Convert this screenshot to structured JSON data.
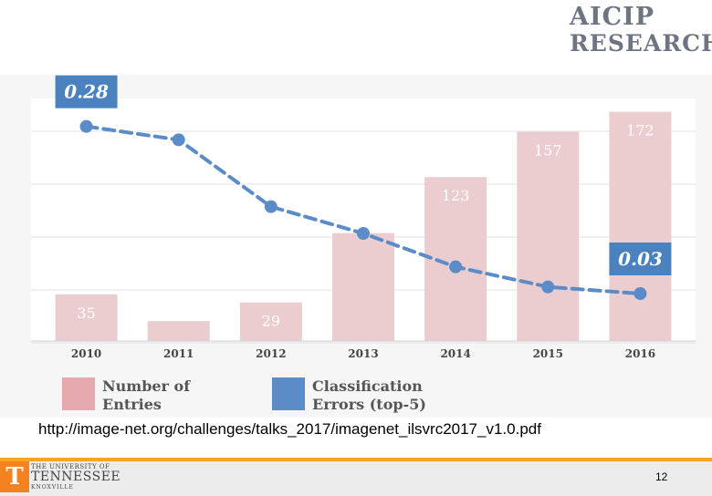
{
  "logo": {
    "line1": "AICIP",
    "line2": "RESEARCH"
  },
  "chart_data": {
    "type": "bar",
    "categories": [
      "2010",
      "2011",
      "2012",
      "2013",
      "2014",
      "2015",
      "2016"
    ],
    "series": [
      {
        "name": "Number of Entries",
        "type": "bar",
        "values": [
          35,
          15,
          29,
          81,
          123,
          157,
          172
        ],
        "labels": [
          "35",
          "",
          "29",
          "",
          "123",
          "157",
          "172"
        ]
      },
      {
        "name": "Classification Errors (top-5)",
        "type": "line",
        "values": [
          0.28,
          0.26,
          0.16,
          0.12,
          0.07,
          0.04,
          0.03
        ],
        "callouts": [
          "0.28",
          "",
          "",
          "",
          "",
          "",
          "0.03"
        ]
      }
    ],
    "legend": [
      {
        "line1": "Number of",
        "line2": "Entries"
      },
      {
        "line1": "Classification",
        "line2": "Errors (top-5)"
      }
    ],
    "colors": {
      "bar": "#eccdcf",
      "line": "#5b8cc8",
      "callout": "#4a82c0",
      "legend_bar": "#e6a9ad",
      "legend_line": "#5b8cc8"
    },
    "legend_position": "bottom",
    "grid": true
  },
  "source_text": "http://image-net.org/challenges/talks_2017/imagenet_ilsvrc2017_v1.0.pdf",
  "footer": {
    "univ_line1": "THE UNIVERSITY OF",
    "univ_line2": "TENNESSEE",
    "univ_line3": "KNOXVILLE",
    "t_letter": "T",
    "page_number": "12"
  }
}
